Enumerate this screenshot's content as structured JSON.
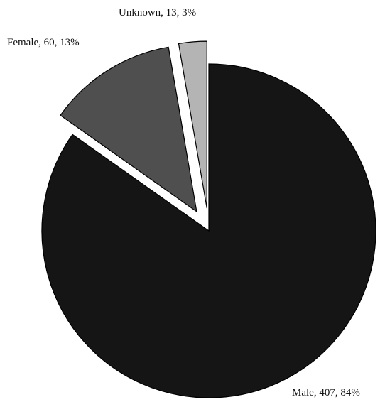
{
  "chart_data": {
    "type": "pie",
    "title": "",
    "slices": [
      {
        "name": "Male",
        "value": 407,
        "percent": 84,
        "label": "Male, 407, 84%",
        "color": "#151515",
        "exploded": false
      },
      {
        "name": "Female",
        "value": 60,
        "percent": 13,
        "label": "Female, 60, 13%",
        "color": "#4f4f4f",
        "exploded": true
      },
      {
        "name": "Unknown",
        "value": 13,
        "percent": 3,
        "label": "Unknown, 13, 3%",
        "color": "#b4b4b4",
        "exploded": true
      }
    ],
    "start_angle": "12 o'clock",
    "direction": "clockwise",
    "legend": "none"
  }
}
